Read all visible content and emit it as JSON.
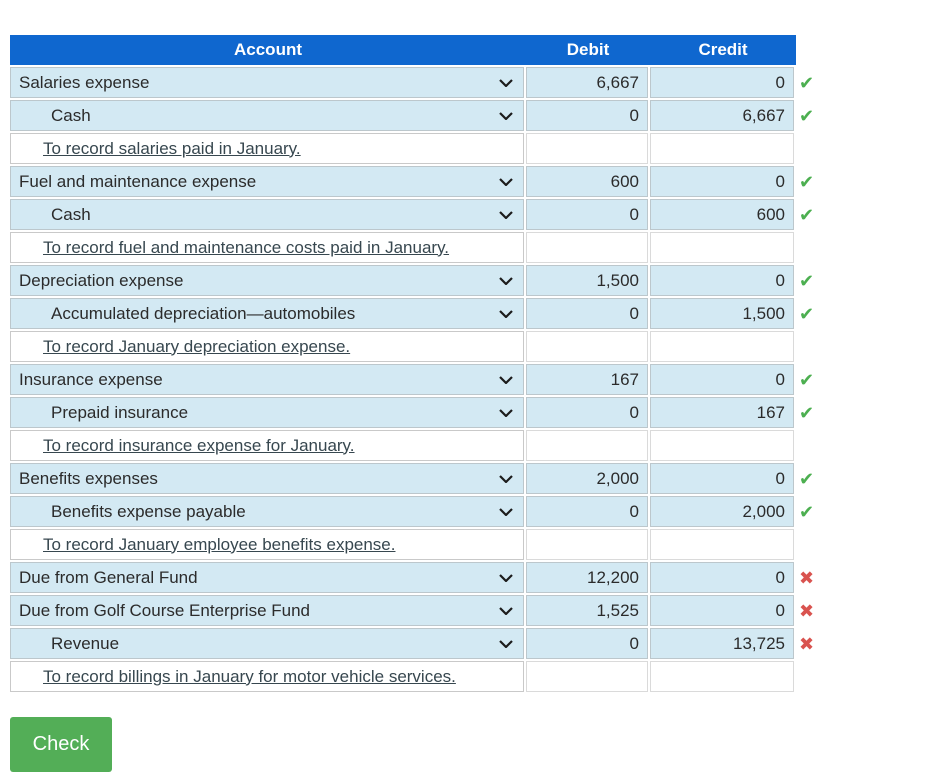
{
  "table": {
    "headers": {
      "account": "Account",
      "debit": "Debit",
      "credit": "Credit"
    },
    "rows": [
      {
        "type": "account",
        "indent": false,
        "account": "Salaries expense",
        "debit": "6,667",
        "credit": "0",
        "status": "correct"
      },
      {
        "type": "account",
        "indent": true,
        "account": "Cash",
        "debit": "0",
        "credit": "6,667",
        "status": "correct"
      },
      {
        "type": "description",
        "text": "To record salaries paid in January."
      },
      {
        "type": "account",
        "indent": false,
        "account": "Fuel and maintenance expense",
        "debit": "600",
        "credit": "0",
        "status": "correct"
      },
      {
        "type": "account",
        "indent": true,
        "account": "Cash",
        "debit": "0",
        "credit": "600",
        "status": "correct"
      },
      {
        "type": "description",
        "text": "To record fuel and maintenance costs paid in January."
      },
      {
        "type": "account",
        "indent": false,
        "account": "Depreciation expense",
        "debit": "1,500",
        "credit": "0",
        "status": "correct"
      },
      {
        "type": "account",
        "indent": true,
        "account": "Accumulated depreciation—automobiles",
        "debit": "0",
        "credit": "1,500",
        "status": "correct"
      },
      {
        "type": "description",
        "text": "To record January depreciation expense."
      },
      {
        "type": "account",
        "indent": false,
        "account": "Insurance expense",
        "debit": "167",
        "credit": "0",
        "status": "correct"
      },
      {
        "type": "account",
        "indent": true,
        "account": "Prepaid insurance",
        "debit": "0",
        "credit": "167",
        "status": "correct"
      },
      {
        "type": "description",
        "text": "To record insurance expense for January."
      },
      {
        "type": "account",
        "indent": false,
        "account": "Benefits expenses",
        "debit": "2,000",
        "credit": "0",
        "status": "correct"
      },
      {
        "type": "account",
        "indent": true,
        "account": "Benefits expense payable",
        "debit": "0",
        "credit": "2,000",
        "status": "correct"
      },
      {
        "type": "description",
        "text": "To record January employee benefits expense."
      },
      {
        "type": "account",
        "indent": false,
        "account": "Due from General Fund",
        "debit": "12,200",
        "credit": "0",
        "status": "incorrect"
      },
      {
        "type": "account",
        "indent": false,
        "account": "Due from Golf Course Enterprise Fund",
        "debit": "1,525",
        "credit": "0",
        "status": "incorrect"
      },
      {
        "type": "account",
        "indent": true,
        "account": "Revenue",
        "debit": "0",
        "credit": "13,725",
        "status": "incorrect"
      },
      {
        "type": "description",
        "text": "To record billings in January for motor vehicle services."
      }
    ]
  },
  "icons": {
    "correct": "✔",
    "incorrect": "✖",
    "dropdown": "chevron-down"
  },
  "colors": {
    "header_bg": "#0f67cf",
    "row_bg": "#d3e9f3",
    "correct": "#4caf50",
    "incorrect": "#d9534f",
    "button_bg": "#53ae57"
  },
  "check_button": {
    "label": "Check"
  }
}
